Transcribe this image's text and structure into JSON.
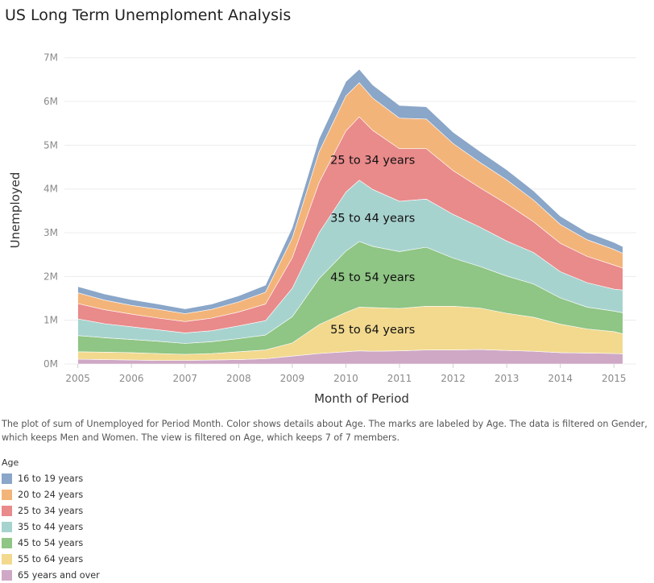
{
  "title": "US Long Term Unemploment Analysis",
  "caption": "The plot of sum of Unemployed for Period Month.  Color shows details about Age.  The marks are labeled by Age. The data is filtered on Gender, which keeps Men and Women. The view is filtered on Age, which keeps 7 of 7 members.",
  "legend": {
    "title": "Age",
    "items": [
      {
        "label": "16 to 19 years",
        "color": "#8aa6c8"
      },
      {
        "label": "20 to 24 years",
        "color": "#f3b47a"
      },
      {
        "label": "25 to 34 years",
        "color": "#e98a8b"
      },
      {
        "label": "35 to 44 years",
        "color": "#a7d3cf"
      },
      {
        "label": "45 to 54 years",
        "color": "#8fc585"
      },
      {
        "label": "55 to 64 years",
        "color": "#f2d98e"
      },
      {
        "label": "65 years and over",
        "color": "#cfa8c6"
      }
    ]
  },
  "chart_data": {
    "type": "area",
    "stacked": true,
    "xlabel": "Month of Period",
    "ylabel": "Unemployed",
    "x_ticks": [
      "2005",
      "2006",
      "2007",
      "2008",
      "2009",
      "2010",
      "2011",
      "2012",
      "2013",
      "2014",
      "2015"
    ],
    "y_ticks": [
      "0M",
      "1M",
      "2M",
      "3M",
      "4M",
      "5M",
      "6M",
      "7M"
    ],
    "ylim": [
      0,
      7400000
    ],
    "xlim": [
      "2004-10",
      "2015-06"
    ],
    "grid": "horizontal",
    "x": [
      "2005-01",
      "2005-07",
      "2006-01",
      "2006-07",
      "2007-01",
      "2007-07",
      "2008-01",
      "2008-07",
      "2009-01",
      "2009-07",
      "2010-01",
      "2010-04",
      "2010-07",
      "2011-01",
      "2011-07",
      "2012-01",
      "2012-07",
      "2013-01",
      "2013-07",
      "2014-01",
      "2014-07",
      "2015-01",
      "2015-03"
    ],
    "series": [
      {
        "name": "65 years and over",
        "color": "#cfa8c6",
        "values": [
          110000,
          100000,
          90000,
          80000,
          80000,
          90000,
          100000,
          120000,
          180000,
          240000,
          280000,
          300000,
          290000,
          300000,
          320000,
          320000,
          330000,
          310000,
          290000,
          260000,
          250000,
          240000,
          230000
        ]
      },
      {
        "name": "55 to 64 years",
        "color": "#f2d98e",
        "values": [
          170000,
          170000,
          170000,
          160000,
          140000,
          150000,
          180000,
          200000,
          300000,
          660000,
          900000,
          1000000,
          1000000,
          970000,
          1000000,
          1000000,
          950000,
          850000,
          780000,
          650000,
          550000,
          500000,
          460000
        ]
      },
      {
        "name": "45 to 54 years",
        "color": "#8fc585",
        "values": [
          370000,
          330000,
          300000,
          280000,
          250000,
          270000,
          300000,
          340000,
          600000,
          1050000,
          1400000,
          1500000,
          1400000,
          1300000,
          1350000,
          1100000,
          950000,
          850000,
          760000,
          600000,
          500000,
          470000,
          480000
        ]
      },
      {
        "name": "35 to 44 years",
        "color": "#a7d3cf",
        "values": [
          380000,
          320000,
          290000,
          260000,
          240000,
          250000,
          290000,
          330000,
          650000,
          1050000,
          1350000,
          1400000,
          1300000,
          1150000,
          1100000,
          1000000,
          900000,
          800000,
          720000,
          600000,
          560000,
          500000,
          520000
        ]
      },
      {
        "name": "25 to 34 years",
        "color": "#e98a8b",
        "values": [
          350000,
          320000,
          290000,
          270000,
          260000,
          290000,
          320000,
          380000,
          700000,
          1150000,
          1400000,
          1450000,
          1350000,
          1200000,
          1150000,
          1000000,
          900000,
          850000,
          700000,
          650000,
          600000,
          550000,
          500000
        ]
      },
      {
        "name": "20 to 24 years",
        "color": "#f3b47a",
        "values": [
          250000,
          220000,
          200000,
          200000,
          180000,
          200000,
          230000,
          270000,
          450000,
          700000,
          800000,
          780000,
          740000,
          700000,
          680000,
          620000,
          580000,
          550000,
          500000,
          430000,
          380000,
          360000,
          340000
        ]
      },
      {
        "name": "16 to 19 years",
        "color": "#8aa6c8",
        "values": [
          140000,
          140000,
          130000,
          120000,
          110000,
          120000,
          140000,
          160000,
          240000,
          300000,
          330000,
          310000,
          300000,
          290000,
          280000,
          260000,
          250000,
          230000,
          210000,
          190000,
          170000,
          160000,
          150000
        ]
      }
    ],
    "labels": [
      "25 to 34 years",
      "35 to 44 years",
      "45 to 54 years",
      "55 to 64 years"
    ]
  }
}
